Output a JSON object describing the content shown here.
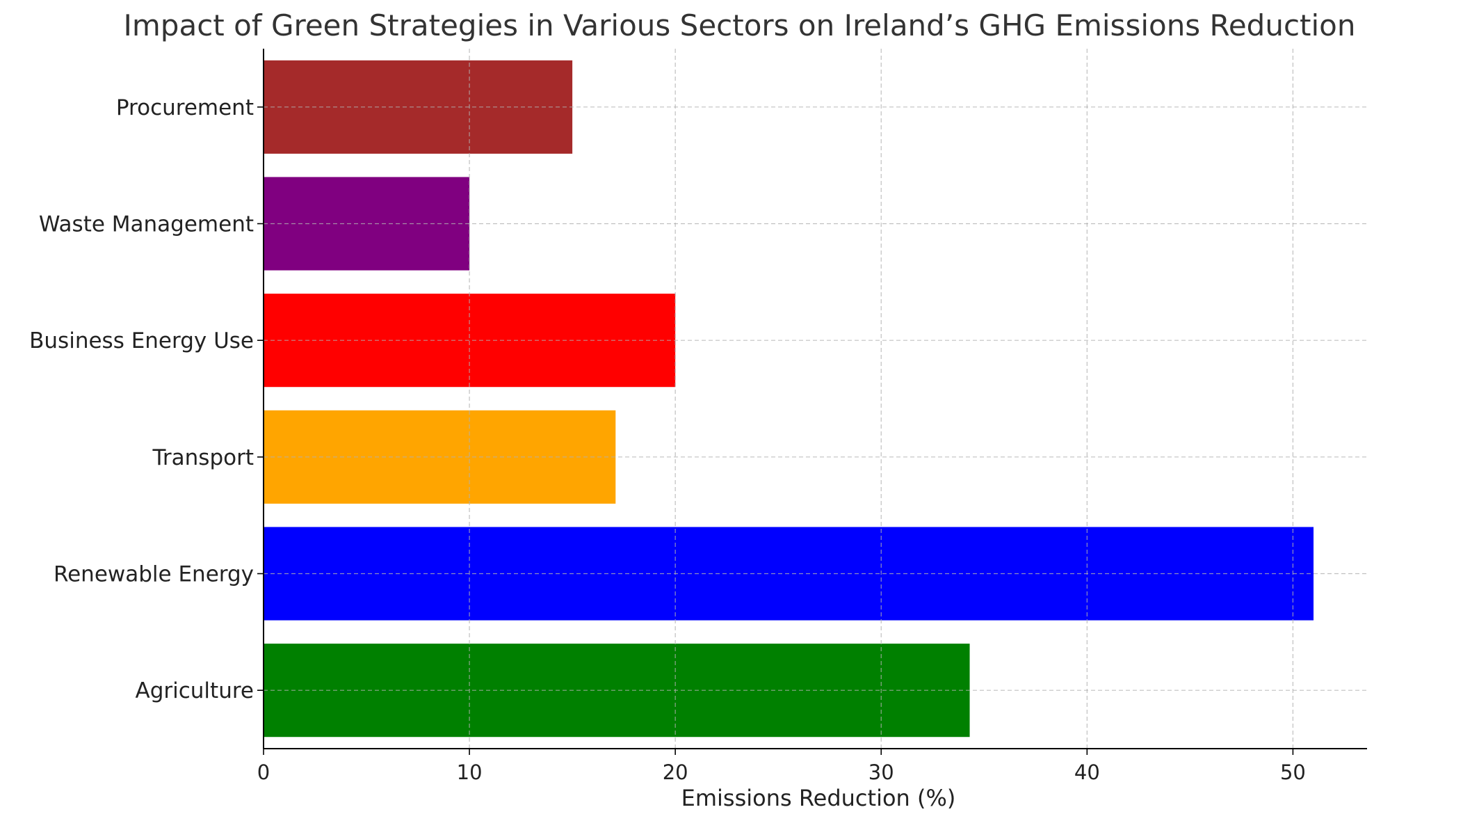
{
  "chart_data": {
    "type": "bar",
    "orientation": "horizontal",
    "title": "Impact of Green Strategies in Various Sectors on Ireland’s GHG Emissions Reduction",
    "xlabel": "Emissions Reduction (%)",
    "ylabel": "",
    "xlim": [
      0,
      53.6
    ],
    "xticks": [
      0,
      10,
      20,
      30,
      40,
      50
    ],
    "grid": true,
    "categories": [
      "Agriculture",
      "Renewable Energy",
      "Transport",
      "Business Energy Use",
      "Waste Management",
      "Procurement"
    ],
    "values": [
      34.3,
      51,
      17.1,
      20,
      10,
      15
    ],
    "colors": [
      "#008000",
      "#0000ff",
      "#ffa500",
      "#ff0000",
      "#800080",
      "#a52a2a"
    ]
  }
}
